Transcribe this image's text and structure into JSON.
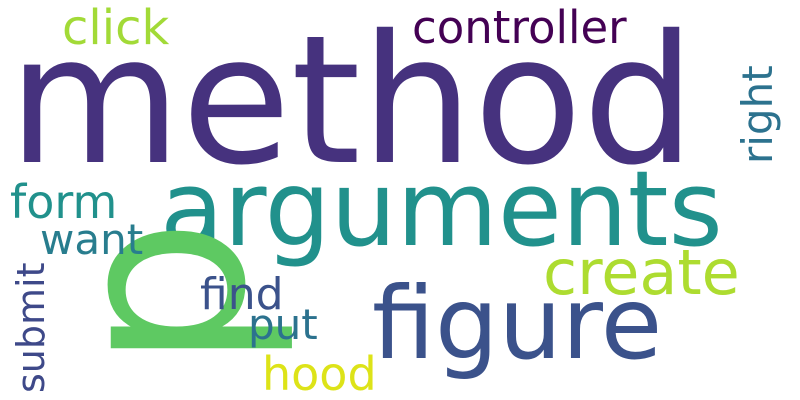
{
  "words": [
    {
      "text": "method",
      "color": "#46327e"
    },
    {
      "text": "arguments",
      "color": "#21918c"
    },
    {
      "text": "figure",
      "color": "#3b528b"
    },
    {
      "text": "p",
      "color": "#5ec962"
    },
    {
      "text": "create",
      "color": "#addc30"
    },
    {
      "text": "controller",
      "color": "#440154"
    },
    {
      "text": "click",
      "color": "#a2da37"
    },
    {
      "text": "right",
      "color": "#2c728e"
    },
    {
      "text": "form",
      "color": "#21918c"
    },
    {
      "text": "want",
      "color": "#287d8e"
    },
    {
      "text": "find",
      "color": "#3b528b"
    },
    {
      "text": "put",
      "color": "#2c728e"
    },
    {
      "text": "submit",
      "color": "#3e4989"
    },
    {
      "text": "hood",
      "color": "#dde318"
    }
  ]
}
